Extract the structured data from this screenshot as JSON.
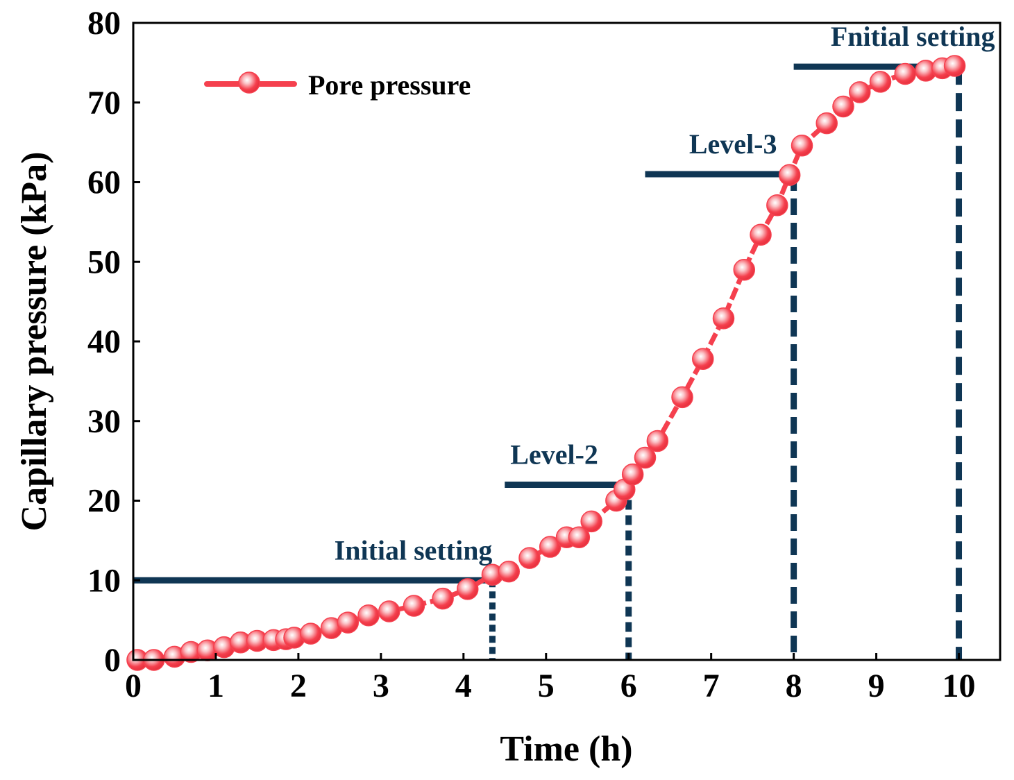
{
  "chart_data": {
    "type": "line",
    "title": "",
    "xlabel": "Time (h)",
    "ylabel": "Capillary pressure (kPa)",
    "xlim": [
      0,
      10.5
    ],
    "ylim": [
      0,
      80
    ],
    "xticks": [
      0,
      1,
      2,
      3,
      4,
      5,
      6,
      7,
      8,
      9,
      10
    ],
    "yticks": [
      0,
      10,
      20,
      30,
      40,
      50,
      60,
      70,
      80
    ],
    "grid": false,
    "legend_position": "top-left",
    "series": [
      {
        "name": "Pore pressure",
        "color": "#f5404e",
        "x": [
          0.05,
          0.25,
          0.5,
          0.7,
          0.9,
          1.1,
          1.3,
          1.5,
          1.7,
          1.85,
          1.95,
          2.15,
          2.4,
          2.6,
          2.85,
          3.1,
          3.4,
          3.75,
          4.05,
          4.35,
          4.55,
          4.8,
          5.05,
          5.25,
          5.4,
          5.55,
          5.85,
          5.95,
          6.05,
          6.2,
          6.35,
          6.65,
          6.9,
          7.15,
          7.4,
          7.6,
          7.8,
          7.95,
          8.1,
          8.4,
          8.6,
          8.8,
          9.05,
          9.35,
          9.6,
          9.8,
          9.95
        ],
        "y": [
          0.0,
          0.0,
          0.4,
          1.0,
          1.2,
          1.6,
          2.2,
          2.4,
          2.5,
          2.6,
          2.8,
          3.3,
          4.0,
          4.7,
          5.6,
          6.1,
          6.8,
          7.7,
          8.9,
          10.7,
          11.1,
          12.8,
          14.2,
          15.4,
          15.4,
          17.4,
          20.0,
          21.4,
          23.3,
          25.4,
          27.5,
          33.0,
          37.8,
          42.9,
          49.0,
          53.4,
          57.1,
          60.9,
          64.6,
          67.4,
          69.5,
          71.3,
          72.6,
          73.6,
          74.0,
          74.3,
          74.6
        ]
      }
    ],
    "annotations": [
      {
        "label": "Initial setting",
        "level": 10,
        "x_start": 0,
        "x_end": 4.35
      },
      {
        "label": "Level-2",
        "level": 22,
        "x_start": 4.5,
        "x_end": 6.0
      },
      {
        "label": "Level-3",
        "level": 61,
        "x_start": 6.2,
        "x_end": 8.0
      },
      {
        "label": "Fnitial setting",
        "level": 74.5,
        "x_start": 8.0,
        "x_end": 10.0
      }
    ],
    "annotation_color": "#0f3654"
  }
}
